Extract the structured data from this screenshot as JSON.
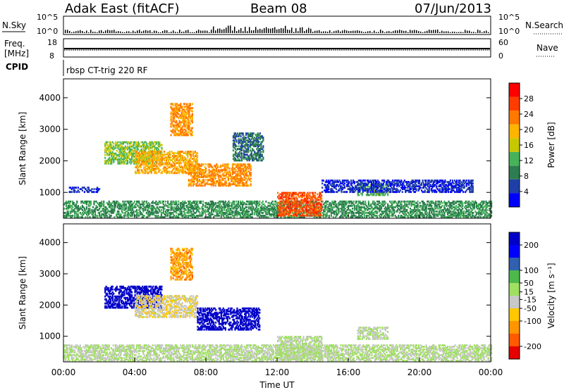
{
  "header": {
    "station": "Adak East (fitACF)",
    "beam": "Beam 08",
    "date": "07/Jun/2013"
  },
  "strips": {
    "nsky_label": "N.Sky",
    "nsky_ticks": [
      "10^5",
      "10^0"
    ],
    "nsearch_label": "N.Search",
    "nsearch_ticks": [
      "10^5",
      "10^0"
    ],
    "freq_label_line1": "Freq.",
    "freq_label_line2": "[MHz]",
    "freq_ticks": [
      "18",
      "8"
    ],
    "nave_label": "Nave",
    "nave_ticks": [
      "60",
      "0"
    ],
    "cpid_label": "CPID",
    "cpid_text": "rbsp CT-trig 220 RF"
  },
  "colors": {
    "power": [
      "#0000ff",
      "#1f3fa8",
      "#2e7d50",
      "#46b35a",
      "#c8c800",
      "#ffb400",
      "#ff7800",
      "#ff3c00",
      "#ff0000"
    ],
    "velocity": [
      "#e60000",
      "#ff5a00",
      "#ff9600",
      "#ffc800",
      "#c8c8c8",
      "#a0e060",
      "#4cb84c",
      "#3060b0",
      "#0000ff",
      "#0000c8"
    ]
  },
  "chart_data": [
    {
      "type": "heatmap",
      "title": "",
      "xlabel": "",
      "ylabel": "Slant Range [km]",
      "xlim": [
        "00:00",
        "24:00"
      ],
      "ylim": [
        180,
        4600
      ],
      "y_ticks": [
        1000,
        2000,
        3000,
        4000
      ],
      "x_ticks": [
        "00:00",
        "04:00",
        "08:00",
        "12:00",
        "16:00",
        "20:00",
        "00:00"
      ],
      "colorbar_label": "Power [dB]",
      "colorbar_ticks": [
        4,
        8,
        12,
        16,
        20,
        24,
        28
      ],
      "colorbar_range": [
        0,
        32
      ],
      "echo_regions": [
        {
          "t0": 0.0,
          "t1": 24.0,
          "r0": 200,
          "r1": 700,
          "value": 10
        },
        {
          "t0": 0.3,
          "t1": 2.0,
          "r0": 1000,
          "r1": 1150,
          "value": 4
        },
        {
          "t0": 2.3,
          "t1": 5.5,
          "r0": 1900,
          "r1": 2600,
          "value": 14
        },
        {
          "t0": 4.0,
          "t1": 7.5,
          "r0": 1600,
          "r1": 2300,
          "value": 20
        },
        {
          "t0": 6.0,
          "t1": 7.2,
          "r0": 2800,
          "r1": 3800,
          "value": 22
        },
        {
          "t0": 7.0,
          "t1": 10.5,
          "r0": 1200,
          "r1": 1900,
          "value": 22
        },
        {
          "t0": 9.5,
          "t1": 11.2,
          "r0": 2000,
          "r1": 2900,
          "value": 8
        },
        {
          "t0": 12.0,
          "t1": 14.5,
          "r0": 250,
          "r1": 1000,
          "value": 26
        },
        {
          "t0": 16.5,
          "t1": 18.2,
          "r0": 900,
          "r1": 1300,
          "value": 12
        },
        {
          "t0": 14.5,
          "t1": 23.0,
          "r0": 1000,
          "r1": 1400,
          "value": 4
        }
      ]
    },
    {
      "type": "heatmap",
      "title": "",
      "xlabel": "Time UT",
      "ylabel": "Slant Range [km]",
      "xlim": [
        "00:00",
        "24:00"
      ],
      "ylim": [
        180,
        4600
      ],
      "y_ticks": [
        1000,
        2000,
        3000,
        4000
      ],
      "x_ticks": [
        "00:00",
        "04:00",
        "08:00",
        "12:00",
        "16:00",
        "20:00",
        "00:00"
      ],
      "colorbar_label": "Velocity [m s⁻¹]",
      "colorbar_ticks": [
        200,
        100,
        50,
        15,
        -15,
        -50,
        -100,
        -200
      ],
      "colorbar_range": [
        -250,
        250
      ],
      "echo_regions": [
        {
          "t0": 0.0,
          "t1": 24.0,
          "r0": 200,
          "r1": 700,
          "value": 5
        },
        {
          "t0": 2.3,
          "t1": 5.5,
          "r0": 1900,
          "r1": 2600,
          "value": 250
        },
        {
          "t0": 4.0,
          "t1": 7.5,
          "r0": 1600,
          "r1": 2300,
          "value": -40
        },
        {
          "t0": 6.0,
          "t1": 7.2,
          "r0": 2800,
          "r1": 3800,
          "value": -120
        },
        {
          "t0": 7.5,
          "t1": 11.0,
          "r0": 1200,
          "r1": 1900,
          "value": 250
        },
        {
          "t0": 12.0,
          "t1": 14.5,
          "r0": 250,
          "r1": 1000,
          "value": 0
        },
        {
          "t0": 16.5,
          "t1": 18.2,
          "r0": 900,
          "r1": 1300,
          "value": 0
        }
      ]
    }
  ]
}
